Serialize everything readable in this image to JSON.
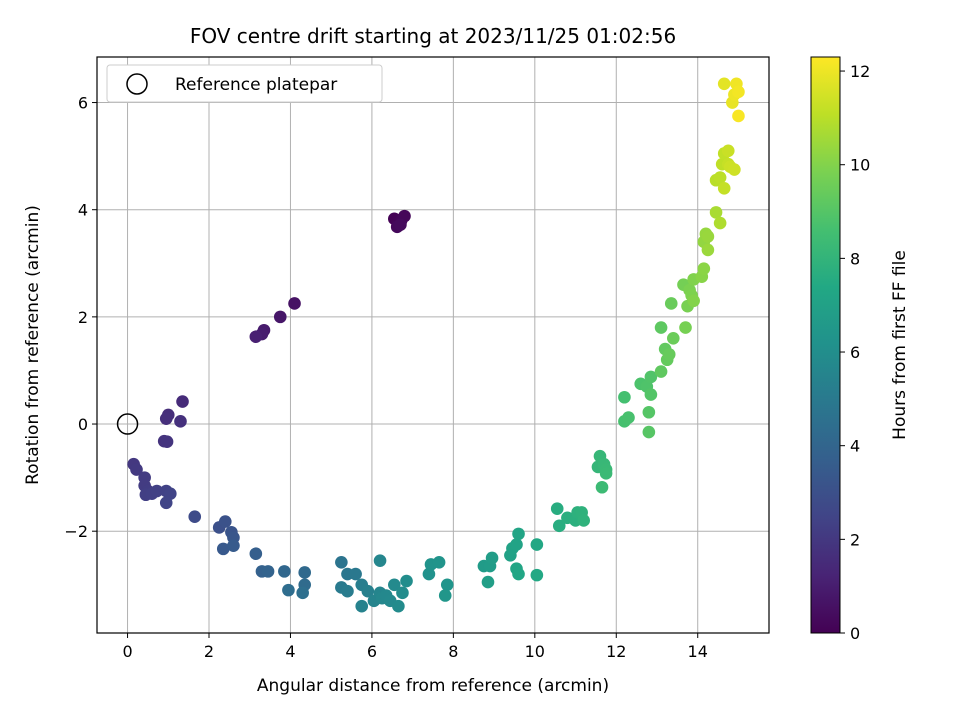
{
  "chart_data": {
    "type": "scatter",
    "title": "FOV centre drift starting at 2023/11/25 01:02:56",
    "xlabel": "Angular distance from reference (arcmin)",
    "ylabel": "Rotation from reference (arcmin)",
    "xlim": [
      -0.75,
      15.75
    ],
    "ylim": [
      -3.9,
      6.85
    ],
    "xticks": [
      0,
      2,
      4,
      6,
      8,
      10,
      12,
      14
    ],
    "yticks": [
      -2,
      0,
      2,
      4,
      6
    ],
    "grid": true,
    "legend": {
      "placement": "upper-left",
      "entries": [
        "Reference platepar"
      ]
    },
    "reference": {
      "x": 0,
      "y": 0
    },
    "colorbar": {
      "label": "Hours from first FF file",
      "min": 0,
      "max": 12.3,
      "ticks": [
        0,
        2,
        4,
        6,
        8,
        10,
        12
      ],
      "colormap": "viridis"
    },
    "points": [
      [
        6.55,
        3.83,
        0.05
      ],
      [
        6.65,
        3.75,
        0.1
      ],
      [
        6.72,
        3.8,
        0.15
      ],
      [
        6.8,
        3.88,
        0.2
      ],
      [
        6.62,
        3.68,
        0.25
      ],
      [
        6.7,
        3.72,
        0.3
      ],
      [
        4.1,
        2.25,
        0.6
      ],
      [
        3.75,
        2.0,
        0.75
      ],
      [
        3.35,
        1.75,
        0.9
      ],
      [
        3.3,
        1.68,
        1.0
      ],
      [
        3.15,
        1.63,
        1.1
      ],
      [
        1.35,
        0.42,
        1.5
      ],
      [
        1.0,
        0.17,
        1.6
      ],
      [
        0.95,
        0.1,
        1.65
      ],
      [
        1.3,
        0.05,
        1.7
      ],
      [
        0.9,
        -0.32,
        1.8
      ],
      [
        0.97,
        -0.33,
        1.85
      ],
      [
        0.15,
        -0.75,
        2.0
      ],
      [
        0.22,
        -0.85,
        2.05
      ],
      [
        0.42,
        -1.0,
        2.1
      ],
      [
        0.42,
        -1.15,
        2.15
      ],
      [
        0.5,
        -1.25,
        2.2
      ],
      [
        0.45,
        -1.32,
        2.25
      ],
      [
        0.6,
        -1.3,
        2.3
      ],
      [
        0.72,
        -1.25,
        2.35
      ],
      [
        0.95,
        -1.25,
        2.4
      ],
      [
        1.05,
        -1.3,
        2.45
      ],
      [
        0.95,
        -1.47,
        2.5
      ],
      [
        1.65,
        -1.73,
        2.8
      ],
      [
        2.25,
        -1.93,
        3.0
      ],
      [
        2.4,
        -1.82,
        3.1
      ],
      [
        2.55,
        -2.02,
        3.2
      ],
      [
        2.6,
        -2.12,
        3.3
      ],
      [
        2.35,
        -2.33,
        3.4
      ],
      [
        2.6,
        -2.27,
        3.5
      ],
      [
        3.15,
        -2.42,
        3.7
      ],
      [
        3.3,
        -2.75,
        3.8
      ],
      [
        3.45,
        -2.75,
        3.9
      ],
      [
        3.85,
        -2.75,
        4.1
      ],
      [
        4.35,
        -2.77,
        4.2
      ],
      [
        4.35,
        -3.0,
        4.3
      ],
      [
        3.95,
        -3.1,
        4.4
      ],
      [
        4.3,
        -3.15,
        4.5
      ],
      [
        5.25,
        -2.58,
        4.7
      ],
      [
        5.4,
        -2.8,
        4.8
      ],
      [
        5.6,
        -2.8,
        4.9
      ],
      [
        5.25,
        -3.05,
        5.0
      ],
      [
        5.4,
        -3.12,
        5.1
      ],
      [
        5.75,
        -3.0,
        5.2
      ],
      [
        5.9,
        -3.12,
        5.3
      ],
      [
        5.75,
        -3.4,
        5.4
      ],
      [
        6.05,
        -3.3,
        5.5
      ],
      [
        6.2,
        -3.15,
        5.55
      ],
      [
        6.2,
        -2.55,
        5.6
      ],
      [
        6.25,
        -3.25,
        5.65
      ],
      [
        6.35,
        -3.2,
        5.7
      ],
      [
        6.45,
        -3.3,
        5.75
      ],
      [
        6.55,
        -3.0,
        5.8
      ],
      [
        6.65,
        -3.4,
        5.85
      ],
      [
        6.75,
        -3.15,
        5.9
      ],
      [
        6.85,
        -2.93,
        5.95
      ],
      [
        7.4,
        -2.8,
        6.2
      ],
      [
        7.45,
        -2.62,
        6.25
      ],
      [
        7.65,
        -2.58,
        6.3
      ],
      [
        7.85,
        -3.0,
        6.35
      ],
      [
        7.8,
        -3.2,
        6.4
      ],
      [
        8.75,
        -2.65,
        6.7
      ],
      [
        8.9,
        -2.65,
        6.75
      ],
      [
        8.95,
        -2.5,
        6.8
      ],
      [
        8.85,
        -2.95,
        6.85
      ],
      [
        9.4,
        -2.45,
        7.0
      ],
      [
        9.45,
        -2.32,
        7.05
      ],
      [
        9.55,
        -2.25,
        7.1
      ],
      [
        9.6,
        -2.05,
        7.15
      ],
      [
        9.55,
        -2.7,
        7.2
      ],
      [
        9.6,
        -2.8,
        7.25
      ],
      [
        10.05,
        -2.25,
        7.35
      ],
      [
        10.05,
        -2.82,
        7.4
      ],
      [
        10.55,
        -1.58,
        7.6
      ],
      [
        10.6,
        -1.9,
        7.65
      ],
      [
        10.8,
        -1.75,
        7.7
      ],
      [
        11.0,
        -1.8,
        7.75
      ],
      [
        11.05,
        -1.65,
        7.8
      ],
      [
        11.15,
        -1.65,
        7.85
      ],
      [
        11.2,
        -1.8,
        7.9
      ],
      [
        11.55,
        -0.8,
        8.1
      ],
      [
        11.6,
        -0.6,
        8.15
      ],
      [
        11.7,
        -0.75,
        8.2
      ],
      [
        11.75,
        -0.85,
        8.25
      ],
      [
        11.75,
        -0.92,
        8.3
      ],
      [
        11.65,
        -1.18,
        8.35
      ],
      [
        12.2,
        0.5,
        8.6
      ],
      [
        12.2,
        0.05,
        8.65
      ],
      [
        12.3,
        0.12,
        8.7
      ],
      [
        12.6,
        0.75,
        8.8
      ],
      [
        12.75,
        0.7,
        8.85
      ],
      [
        12.85,
        0.88,
        8.9
      ],
      [
        12.85,
        0.55,
        8.95
      ],
      [
        12.8,
        0.22,
        9.0
      ],
      [
        12.8,
        -0.15,
        9.05
      ],
      [
        13.1,
        1.8,
        9.2
      ],
      [
        13.1,
        0.98,
        9.25
      ],
      [
        13.2,
        1.4,
        9.3
      ],
      [
        13.25,
        1.2,
        9.35
      ],
      [
        13.3,
        1.3,
        9.4
      ],
      [
        13.35,
        2.25,
        9.45
      ],
      [
        13.4,
        1.6,
        9.5
      ],
      [
        13.65,
        2.6,
        9.7
      ],
      [
        13.7,
        1.8,
        9.75
      ],
      [
        13.75,
        2.2,
        9.8
      ],
      [
        13.8,
        2.5,
        9.85
      ],
      [
        13.85,
        2.4,
        9.9
      ],
      [
        13.9,
        2.7,
        9.95
      ],
      [
        13.9,
        2.3,
        10.0
      ],
      [
        14.1,
        2.75,
        10.1
      ],
      [
        14.15,
        2.9,
        10.15
      ],
      [
        14.15,
        3.4,
        10.3
      ],
      [
        14.2,
        3.55,
        10.35
      ],
      [
        14.25,
        3.5,
        10.4
      ],
      [
        14.25,
        3.25,
        10.45
      ],
      [
        14.45,
        3.95,
        10.7
      ],
      [
        14.55,
        3.75,
        10.8
      ],
      [
        14.45,
        4.55,
        11.0
      ],
      [
        14.55,
        4.6,
        11.05
      ],
      [
        14.6,
        4.85,
        11.1
      ],
      [
        14.65,
        5.05,
        11.15
      ],
      [
        14.65,
        4.4,
        11.2
      ],
      [
        14.75,
        4.85,
        11.25
      ],
      [
        14.75,
        5.1,
        11.3
      ],
      [
        14.8,
        4.8,
        11.35
      ],
      [
        14.9,
        4.75,
        11.4
      ],
      [
        14.65,
        6.35,
        11.8
      ],
      [
        14.85,
        6.0,
        11.9
      ],
      [
        14.9,
        6.15,
        12.0
      ],
      [
        14.95,
        6.35,
        12.05
      ],
      [
        15.0,
        6.2,
        12.1
      ],
      [
        15.0,
        5.75,
        12.2
      ]
    ]
  }
}
